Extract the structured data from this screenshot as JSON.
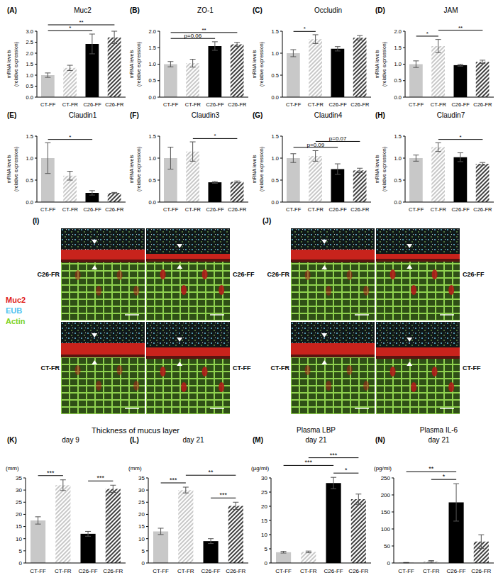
{
  "chart_data": [
    {
      "panel": "(A)",
      "type": "bar",
      "title": "Muc2",
      "y_label": [
        "mRNA levels",
        "(relative expression)"
      ],
      "categories": [
        "CT-FF",
        "CT-FR",
        "C26-FF",
        "C26-FR"
      ],
      "values": [
        1.0,
        1.33,
        2.42,
        2.72
      ],
      "errors": [
        0.1,
        0.12,
        0.45,
        0.28
      ],
      "colors": [
        "#c8c8c8",
        "#c8c8c8",
        "#000000",
        "#404040"
      ],
      "ylim": [
        0,
        3
      ],
      "yticks": [
        {
          "value": 0,
          "label": "0.0"
        },
        0.5,
        {
          "value": 1,
          "label": "1.0"
        },
        1.5,
        {
          "value": 2,
          "label": "2.0"
        },
        2.5,
        {
          "value": 3,
          "label": "3.0"
        }
      ],
      "annotations": [
        {
          "from": "CT-FF",
          "to": "C26-FF",
          "text": "*"
        },
        {
          "from": "CT-FF",
          "to": "C26-FR",
          "text": "**"
        }
      ]
    },
    {
      "panel": "(B)",
      "type": "bar",
      "title": "ZO-1",
      "y_label": [
        "mRNA levels",
        "(relative expression)"
      ],
      "categories": [
        "CT-FF",
        "CT-FR",
        "C26-FF",
        "C26-FR"
      ],
      "values": [
        1.0,
        1.03,
        1.55,
        1.6
      ],
      "errors": [
        0.08,
        0.12,
        0.13,
        0.06
      ],
      "colors": [
        "#c8c8c8",
        "#c8c8c8",
        "#000000",
        "#404040"
      ],
      "ylim": [
        0,
        2
      ],
      "yticks": [
        {
          "value": 0,
          "label": "0.0"
        },
        0.5,
        {
          "value": 1,
          "label": "1.0"
        },
        1.5,
        {
          "value": 2,
          "label": "2.0"
        }
      ],
      "annotations": [
        {
          "from": "CT-FF",
          "to": "C26-FF",
          "text": "p=0.06"
        },
        {
          "from": "CT-FF",
          "to": "C26-FR",
          "text": "**"
        }
      ]
    },
    {
      "panel": "(C)",
      "type": "bar",
      "title": "Occludin",
      "y_label": [
        "mRNA levels",
        "(relative expression)"
      ],
      "categories": [
        "CT-FF",
        "CT-FR",
        "C26-FF",
        "C26-FR"
      ],
      "values": [
        1.0,
        1.32,
        1.1,
        1.35
      ],
      "errors": [
        0.08,
        0.1,
        0.05,
        0.05
      ],
      "colors": [
        "#c8c8c8",
        "#c8c8c8",
        "#000000",
        "#404040"
      ],
      "ylim": [
        0,
        1.5
      ],
      "yticks": [
        {
          "value": 0,
          "label": "0.0"
        },
        0.5,
        {
          "value": 1,
          "label": "1.0"
        },
        1.5
      ],
      "annotations": [
        {
          "from": "CT-FF",
          "to": "CT-FR",
          "text": "*"
        }
      ]
    },
    {
      "panel": "(D)",
      "type": "bar",
      "title": "JAM",
      "y_label": [
        "mRNA levels",
        "(relative expression)"
      ],
      "categories": [
        "CT-FF",
        "CT-FR",
        "C26-FF",
        "C26-FR"
      ],
      "values": [
        1.0,
        1.55,
        0.97,
        1.07
      ],
      "errors": [
        0.1,
        0.2,
        0.03,
        0.05
      ],
      "colors": [
        "#c8c8c8",
        "#c8c8c8",
        "#000000",
        "#404040"
      ],
      "ylim": [
        0,
        2
      ],
      "yticks": [
        {
          "value": 0,
          "label": "0.0"
        },
        0.5,
        {
          "value": 1,
          "label": "1.0"
        },
        1.5,
        {
          "value": 2,
          "label": "2.0"
        }
      ],
      "annotations": [
        {
          "from": "CT-FF",
          "to": "CT-FR",
          "text": "*"
        },
        {
          "from": "CT-FR",
          "to": "C26-FR",
          "text": "**"
        }
      ]
    },
    {
      "panel": "(E)",
      "type": "bar",
      "title": "Claudin1",
      "y_label": [
        "mRNA levels",
        "(relative expression)"
      ],
      "categories": [
        "CT-FF",
        "CT-FR",
        "C26-FF",
        "C26-FR"
      ],
      "values": [
        1.0,
        0.6,
        0.21,
        0.21
      ],
      "errors": [
        0.35,
        0.1,
        0.05,
        0.01
      ],
      "colors": [
        "#c8c8c8",
        "#c8c8c8",
        "#000000",
        "#404040"
      ],
      "ylim": [
        0,
        1.5
      ],
      "yticks": [
        {
          "value": 0,
          "label": "0.0"
        },
        0.5,
        {
          "value": 1,
          "label": "1.0"
        },
        1.5
      ],
      "annotations": [
        {
          "from": "CT-FF",
          "to": "C26-FF",
          "text": "*"
        }
      ]
    },
    {
      "panel": "(F)",
      "type": "bar",
      "title": "Claudin3",
      "y_label": [
        "mRNA levels",
        "(relative expression)"
      ],
      "categories": [
        "CT-FF",
        "CT-FR",
        "C26-FF",
        "C26-FR"
      ],
      "values": [
        1.0,
        1.15,
        0.45,
        0.46
      ],
      "errors": [
        0.25,
        0.22,
        0.02,
        0.02
      ],
      "colors": [
        "#c8c8c8",
        "#c8c8c8",
        "#000000",
        "#404040"
      ],
      "ylim": [
        0,
        1.5
      ],
      "yticks": [
        {
          "value": 0,
          "label": "0.0"
        },
        0.5,
        {
          "value": 1,
          "label": "1.0"
        },
        1.5
      ],
      "annotations": [
        {
          "from": "CT-FR",
          "to": "C26-FR",
          "text": "*"
        }
      ]
    },
    {
      "panel": "(G)",
      "type": "bar",
      "title": "Claudin4",
      "y_label": [
        "mRNA levels",
        "(relative expression)"
      ],
      "categories": [
        "CT-FF",
        "CT-FR",
        "C26-FF",
        "C26-FR"
      ],
      "values": [
        1.0,
        1.05,
        0.75,
        0.72
      ],
      "errors": [
        0.1,
        0.12,
        0.12,
        0.05
      ],
      "colors": [
        "#c8c8c8",
        "#c8c8c8",
        "#000000",
        "#404040"
      ],
      "ylim": [
        0,
        1.5
      ],
      "yticks": [
        {
          "value": 0,
          "label": "0.0"
        },
        0.5,
        {
          "value": 1,
          "label": "1.0"
        },
        1.5
      ],
      "annotations": [
        {
          "from": "CT-FF",
          "to": "C26-FF",
          "text": "p=0.09"
        },
        {
          "from": "CT-FR",
          "to": "C26-FR",
          "text": "p=0.07"
        }
      ]
    },
    {
      "panel": "(H)",
      "type": "bar",
      "title": "Claudin7",
      "y_label": [
        "mRNA levels",
        "(relative expression)"
      ],
      "categories": [
        "CT-FF",
        "CT-FR",
        "C26-FF",
        "C26-FR"
      ],
      "values": [
        1.0,
        1.25,
        1.02,
        0.87
      ],
      "errors": [
        0.07,
        0.1,
        0.1,
        0.03
      ],
      "colors": [
        "#c8c8c8",
        "#c8c8c8",
        "#000000",
        "#404040"
      ],
      "ylim": [
        0,
        1.5
      ],
      "yticks": [
        {
          "value": 0,
          "label": "0.0"
        },
        0.5,
        {
          "value": 1,
          "label": "1.0"
        },
        1.5
      ],
      "annotations": [
        {
          "from": "CT-FR",
          "to": "C26-FR",
          "text": "*"
        }
      ]
    },
    {
      "panel": "(K)",
      "type": "bar",
      "subtitle": "day 9",
      "y_label": "(mm)",
      "categories": [
        "CT-FF",
        "CT-FR",
        "C26-FF",
        "C26-FR"
      ],
      "values": [
        17.5,
        32,
        12,
        30.5
      ],
      "errors": [
        1.5,
        2.2,
        1,
        1.5
      ],
      "colors": [
        "#c8c8c8",
        "#c8c8c8",
        "#000000",
        "#404040"
      ],
      "ylim": [
        0,
        35
      ],
      "yticks": [
        0,
        5,
        10,
        15,
        20,
        25,
        30,
        35
      ],
      "annotations": [
        {
          "from": "CT-FF",
          "to": "CT-FR",
          "text": "***"
        },
        {
          "from": "C26-FF",
          "to": "C26-FR",
          "text": "***"
        }
      ]
    },
    {
      "panel": "(L)",
      "type": "bar",
      "subtitle": "day 21",
      "y_label": "(mm)",
      "categories": [
        "CT-FF",
        "CT-FR",
        "C26-FF",
        "C26-FR"
      ],
      "values": [
        13,
        30,
        9,
        23.5
      ],
      "errors": [
        1.3,
        1.2,
        1,
        1.5
      ],
      "colors": [
        "#c8c8c8",
        "#c8c8c8",
        "#000000",
        "#404040"
      ],
      "ylim": [
        0,
        35
      ],
      "yticks": [
        0,
        5,
        10,
        15,
        20,
        25,
        30,
        35
      ],
      "annotations": [
        {
          "from": "CT-FF",
          "to": "CT-FR",
          "text": "***"
        },
        {
          "from": "CT-FR",
          "to": "C26-FR",
          "text": "**"
        },
        {
          "from": "C26-FF",
          "to": "C26-FR",
          "text": "***"
        }
      ]
    },
    {
      "panel": "(M)",
      "type": "bar",
      "title": "Plasma LBP",
      "subtitle": "day 21",
      "y_label": "(µg/ml)",
      "categories": [
        "CT-FF",
        "CT-FR",
        "C26-FF",
        "C26-FR"
      ],
      "values": [
        3.8,
        3.9,
        28.2,
        22.5
      ],
      "errors": [
        0.3,
        0.3,
        2,
        1.8
      ],
      "colors": [
        "#c8c8c8",
        "#c8c8c8",
        "#000000",
        "#404040"
      ],
      "ylim": [
        0,
        30
      ],
      "yticks": [
        0,
        5,
        10,
        15,
        20,
        25,
        30
      ],
      "annotations": [
        {
          "from": "CT-FF",
          "to": "C26-FF",
          "text": "***"
        },
        {
          "from": "CT-FR",
          "to": "C26-FR",
          "text": "***"
        },
        {
          "from": "C26-FF",
          "to": "C26-FR",
          "text": "*"
        }
      ]
    },
    {
      "panel": "(N)",
      "type": "bar",
      "title": "Plasma IL-6",
      "subtitle": "day 21",
      "y_label": "(pg/ml)",
      "categories": [
        "CT-FF",
        "CT-FR",
        "C26-FF",
        "C26-FR"
      ],
      "values": [
        1,
        5,
        178,
        63
      ],
      "errors": [
        0.5,
        2,
        55,
        20
      ],
      "colors": [
        "#c8c8c8",
        "#c8c8c8",
        "#000000",
        "#404040"
      ],
      "ylim": [
        0,
        250
      ],
      "yticks": [
        0,
        50,
        100,
        150,
        200,
        250
      ],
      "annotations": [
        {
          "from": "CT-FF",
          "to": "C26-FF",
          "text": "**"
        },
        {
          "from": "CT-FR",
          "to": "C26-FF",
          "text": "*"
        }
      ]
    }
  ],
  "group_title": "Thickness of mucus layer",
  "images": [
    {
      "panel": "(I)",
      "labels": [
        "C26-FR",
        "C26-FF",
        "CT-FR",
        "CT-FF"
      ]
    },
    {
      "panel": "(J)",
      "labels": [
        "C26-FR",
        "C26-FF",
        "CT-FR",
        "CT-FF"
      ]
    }
  ],
  "stain_legend": [
    {
      "text": "Muc2",
      "color": "#e0201b"
    },
    {
      "text": "EUB",
      "color": "#4fc3f0"
    },
    {
      "text": "Actin",
      "color": "#7ed321"
    }
  ]
}
